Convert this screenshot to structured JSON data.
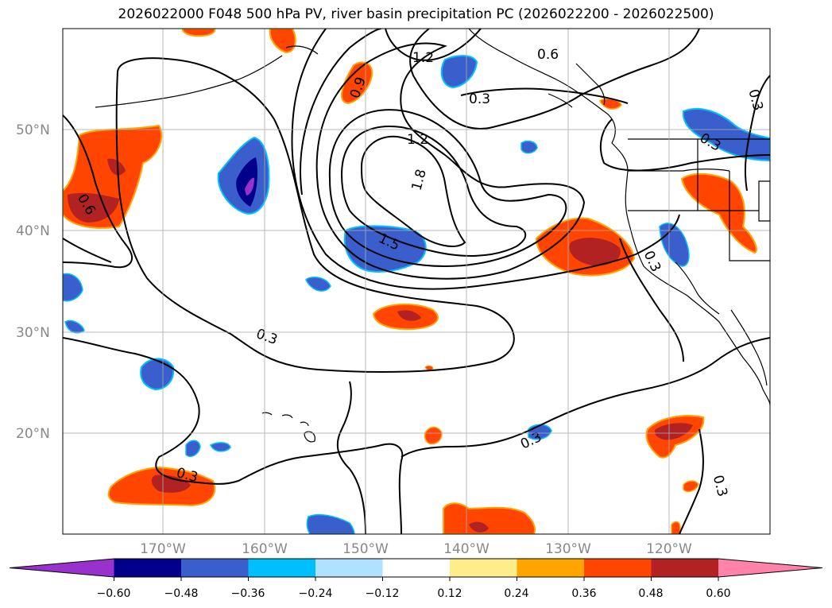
{
  "title": "2026022000 F048 500 hPa PV, river basin precipitation PC (2026022200 - 2026022500)",
  "map": {
    "lat_labels": [
      "50°N",
      "40°N",
      "30°N",
      "20°N"
    ],
    "lon_labels": [
      "170°W",
      "160°W",
      "150°W",
      "140°W",
      "130°W",
      "120°W"
    ],
    "grid": true
  },
  "contour_labels": [
    "1.2",
    "0.6",
    "0.3",
    "0.9",
    "1.2",
    "1.8",
    "1.5",
    "0.3",
    "0.3",
    "0.3",
    "0.3",
    "0.6",
    "0.3",
    "0.3",
    "0.3"
  ],
  "colorbar": {
    "tick_labels": [
      "−0.60",
      "−0.48",
      "−0.36",
      "−0.24",
      "−0.12",
      "0.12",
      "0.24",
      "0.36",
      "0.48",
      "0.60"
    ],
    "colors": [
      "#9932CC",
      "#00008B",
      "#3A5FCD",
      "#00BFFF",
      "#B0E2FF",
      "#FFFFFF",
      "#FFEC8B",
      "#FFA500",
      "#FF4500",
      "#B22222",
      "#FF82AB"
    ]
  },
  "colors": {
    "neg_strong": "#3A5FCD",
    "neg_stronger": "#00008B",
    "neg_light": "#00BFFF",
    "pos_mid": "#FF4500",
    "pos_strong": "#B22222",
    "pos_light": "#FFA500"
  }
}
